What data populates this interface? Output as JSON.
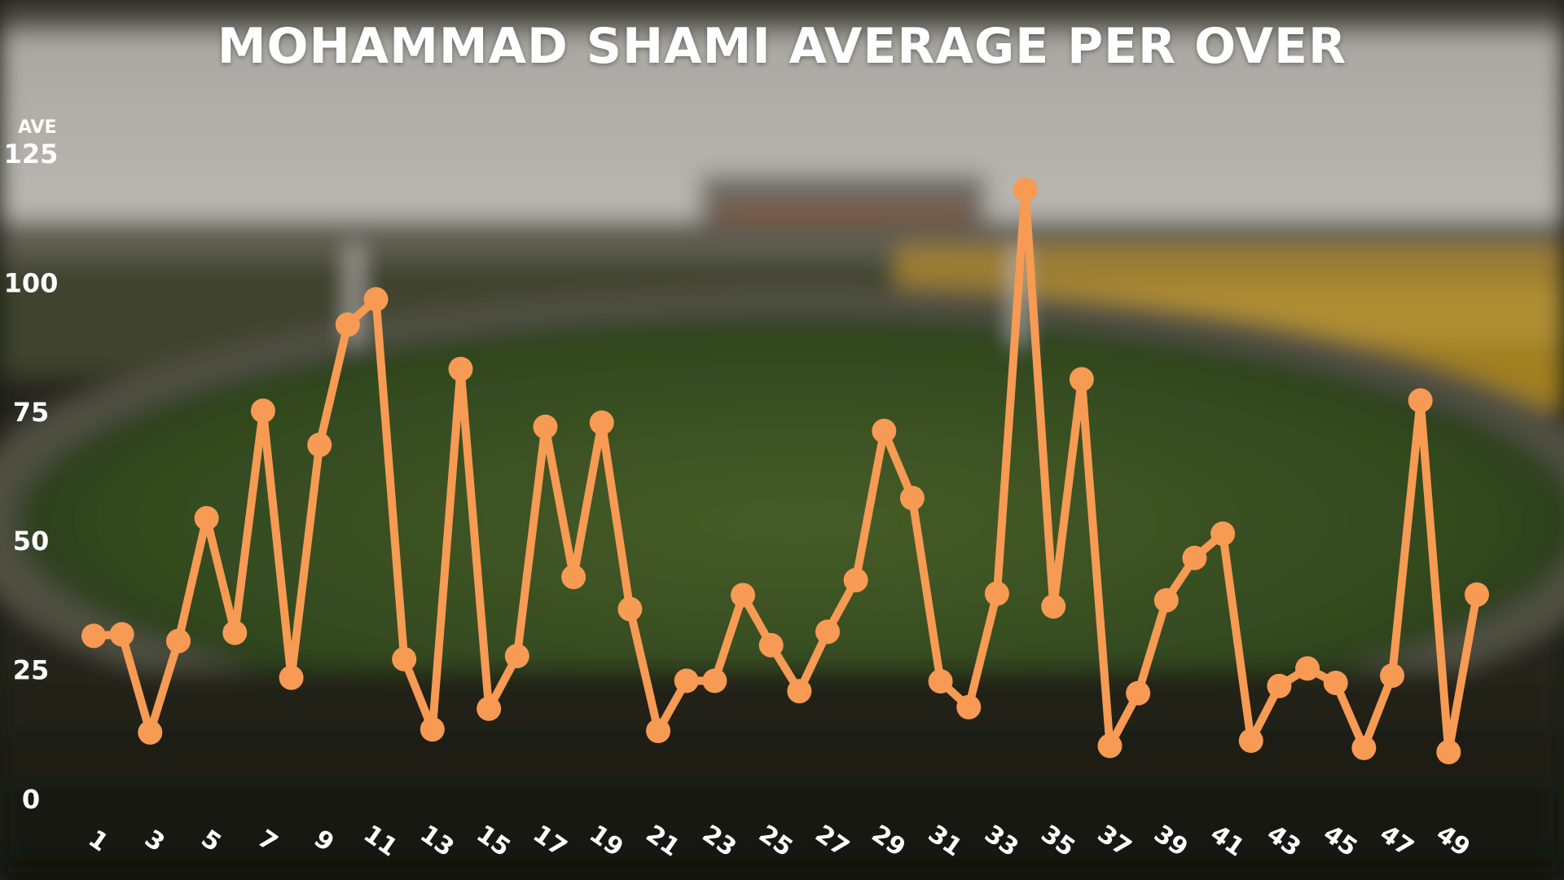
{
  "chart_data": {
    "type": "line",
    "title": "MOHAMMAD SHAMI AVERAGE PER OVER",
    "ylabel": "AVE",
    "xlabel": "",
    "ylim": [
      0,
      125
    ],
    "yticks": [
      0,
      25,
      50,
      75,
      100,
      125
    ],
    "x": [
      1,
      2,
      3,
      4,
      5,
      6,
      7,
      8,
      9,
      10,
      11,
      12,
      13,
      14,
      15,
      16,
      17,
      18,
      19,
      20,
      21,
      22,
      23,
      24,
      25,
      26,
      27,
      28,
      29,
      30,
      31,
      32,
      33,
      34,
      35,
      36,
      37,
      38,
      39,
      40,
      41,
      42,
      43,
      44,
      45,
      46,
      47,
      48,
      49,
      50
    ],
    "x_tick_labels": [
      "1",
      "3",
      "5",
      "7",
      "9",
      "11",
      "13",
      "15",
      "17",
      "19",
      "21",
      "23",
      "25",
      "27",
      "29",
      "31",
      "33",
      "35",
      "37",
      "39",
      "41",
      "43",
      "45",
      "47",
      "49"
    ],
    "series": [
      {
        "values": [
          31.5,
          31.8,
          12.8,
          30.5,
          54.3,
          32.1,
          75.1,
          23.4,
          68.5,
          91.8,
          96.7,
          27.0,
          13.4,
          83.2,
          17.4,
          27.6,
          72.0,
          42.9,
          72.8,
          36.7,
          13.1,
          22.8,
          22.8,
          39.4,
          29.7,
          20.8,
          32.3,
          42.3,
          71.2,
          58.2,
          22.7,
          17.7,
          39.7,
          117.9,
          37.2,
          81.2,
          10.2,
          20.4,
          38.4,
          46.6,
          51.3,
          11.2,
          21.8,
          25.2,
          22.4,
          9.8,
          23.8,
          77.1,
          9.0,
          39.5
        ]
      }
    ],
    "grid": false,
    "legend": "none"
  },
  "colors": {
    "line": "#f79a54",
    "text": "#ffffff"
  }
}
